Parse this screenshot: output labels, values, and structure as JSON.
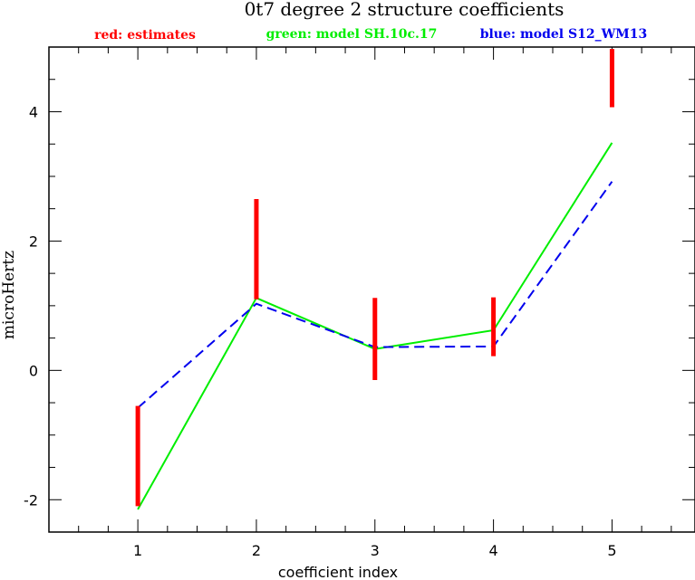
{
  "chart_data": {
    "type": "line",
    "title": "0t7 degree 2 structure coefficients",
    "xlabel": "coefficient index",
    "ylabel": "microHertz",
    "xlim": [
      0.25,
      5.7
    ],
    "ylim": [
      -2.5,
      5.0
    ],
    "x_ticks": [
      1,
      2,
      3,
      4,
      5
    ],
    "y_ticks": [
      -2,
      0,
      2,
      4
    ],
    "legend": [
      {
        "text": "red: estimates",
        "color": "#ff0000"
      },
      {
        "text": "green: model SH.10c.17",
        "color": "#00ee00"
      },
      {
        "text": "blue: model S12_WM13",
        "color": "#0000ee"
      }
    ],
    "estimates": {
      "color": "#ff0000",
      "intervals": [
        {
          "x": 1,
          "low": -2.1,
          "high": -0.55
        },
        {
          "x": 2,
          "low": 1.1,
          "high": 2.65
        },
        {
          "x": 3,
          "low": -0.15,
          "high": 1.12
        },
        {
          "x": 4,
          "low": 0.22,
          "high": 1.13
        },
        {
          "x": 5,
          "low": 4.07,
          "high": 4.97
        }
      ]
    },
    "series": [
      {
        "name": "green: model SH.10c.17",
        "color": "#00ee00",
        "style": "solid",
        "x": [
          1,
          2,
          3,
          4,
          5
        ],
        "values": [
          -2.15,
          1.12,
          0.33,
          0.62,
          3.52
        ]
      },
      {
        "name": "blue: model S12_WM13",
        "color": "#0000ee",
        "style": "dashed",
        "x": [
          1,
          2,
          3,
          4,
          5
        ],
        "values": [
          -0.58,
          1.03,
          0.36,
          0.37,
          2.92
        ]
      }
    ],
    "grid": false
  }
}
